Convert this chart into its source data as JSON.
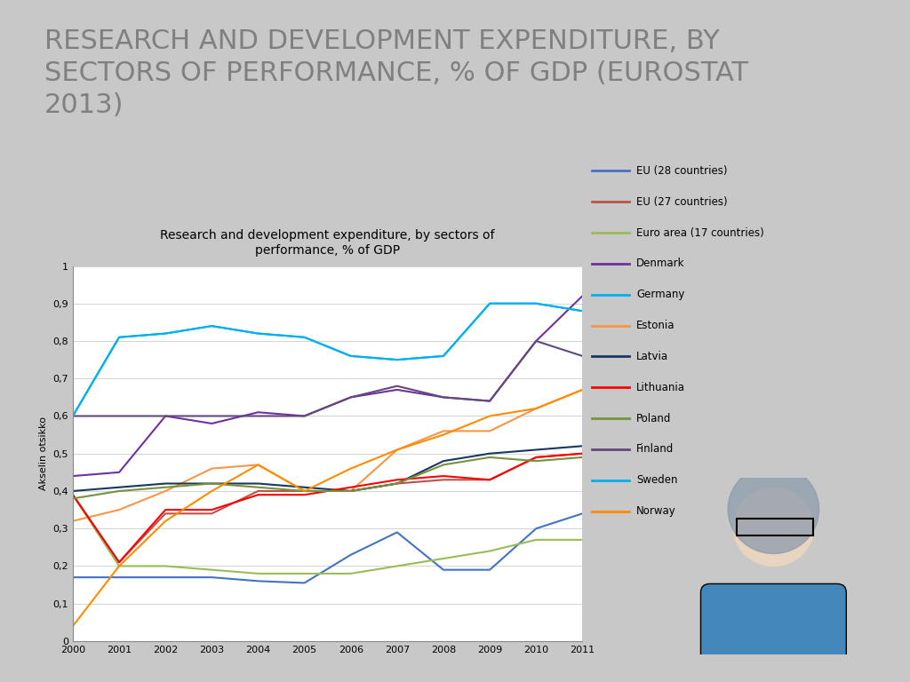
{
  "title_slide": "RESEARCH AND DEVELOPMENT EXPENDITURE, BY\nSECTORS OF PERFORMANCE, % OF GDP (EUROSTAT\n2013)",
  "chart_title": "Research and development expenditure, by sectors of\nperformance, % of GDP",
  "ylabel": "Akselin otsikko",
  "years": [
    2000,
    2001,
    2002,
    2003,
    2004,
    2005,
    2006,
    2007,
    2008,
    2009,
    2010,
    2011
  ],
  "series": [
    {
      "name": "EU (28 countries)",
      "color": "#4472C4",
      "values": [
        0.17,
        0.17,
        0.17,
        0.17,
        0.16,
        0.155,
        0.23,
        0.29,
        0.19,
        0.19,
        0.3,
        0.34
      ]
    },
    {
      "name": "EU (27 countries)",
      "color": "#C0504D",
      "values": [
        0.39,
        0.21,
        0.34,
        0.34,
        0.4,
        0.4,
        0.4,
        0.42,
        0.43,
        0.43,
        0.49,
        0.5
      ]
    },
    {
      "name": "Euro area (17 countries)",
      "color": "#9BBB59",
      "values": [
        0.39,
        0.2,
        0.2,
        0.19,
        0.18,
        0.18,
        0.18,
        0.2,
        0.22,
        0.24,
        0.27,
        0.27
      ]
    },
    {
      "name": "Denmark",
      "color": "#7030A0",
      "values": [
        0.44,
        0.45,
        0.6,
        0.58,
        0.61,
        0.6,
        0.65,
        0.67,
        0.65,
        0.64,
        0.8,
        0.92
      ]
    },
    {
      "name": "Germany",
      "color": "#00B0F0",
      "values": [
        0.6,
        0.81,
        0.82,
        0.84,
        0.82,
        0.81,
        0.76,
        0.75,
        0.76,
        0.9,
        0.9,
        0.88
      ]
    },
    {
      "name": "Estonia",
      "color": "#F79646",
      "values": [
        0.32,
        0.35,
        0.4,
        0.46,
        0.47,
        0.4,
        0.4,
        0.51,
        0.56,
        0.56,
        0.62,
        0.67
      ]
    },
    {
      "name": "Latvia",
      "color": "#17375E",
      "values": [
        0.4,
        0.41,
        0.42,
        0.42,
        0.42,
        0.41,
        0.4,
        0.42,
        0.48,
        0.5,
        0.51,
        0.52
      ]
    },
    {
      "name": "Lithuania",
      "color": "#FF0000",
      "values": [
        0.39,
        0.21,
        0.35,
        0.35,
        0.39,
        0.39,
        0.41,
        0.43,
        0.44,
        0.43,
        0.49,
        0.5
      ]
    },
    {
      "name": "Poland",
      "color": "#76923C",
      "values": [
        0.38,
        0.4,
        0.41,
        0.42,
        0.41,
        0.4,
        0.4,
        0.42,
        0.47,
        0.49,
        0.48,
        0.49
      ]
    },
    {
      "name": "Finland",
      "color": "#604A7B",
      "values": [
        0.6,
        0.6,
        0.6,
        0.6,
        0.6,
        0.6,
        0.65,
        0.68,
        0.65,
        0.64,
        0.8,
        0.76
      ]
    },
    {
      "name": "Sweden",
      "color": "#00B0F0",
      "values": [
        0.6,
        0.81,
        0.82,
        0.84,
        0.82,
        0.81,
        0.76,
        0.75,
        0.76,
        0.9,
        0.9,
        0.88
      ]
    },
    {
      "name": "Norway",
      "color": "#FF8C00",
      "values": [
        0.04,
        0.2,
        0.32,
        0.4,
        0.47,
        0.4,
        0.46,
        0.51,
        0.55,
        0.6,
        0.62,
        0.67
      ]
    }
  ],
  "ylim": [
    0,
    1.0
  ],
  "yticks": [
    0,
    0.1,
    0.2,
    0.3,
    0.4,
    0.5,
    0.6,
    0.7,
    0.8,
    0.9,
    1
  ],
  "ytick_labels": [
    "0",
    "0,1",
    "0,2",
    "0,3",
    "0,4",
    "0,5",
    "0,6",
    "0,7",
    "0,8",
    "0,9",
    "1"
  ],
  "slide_bg": "#C8C8C8",
  "title_bg": "#FFFFFF",
  "chart_bg": "#FFFFFF",
  "title_color": "#808080",
  "title_fontsize": 22,
  "chart_title_fontsize": 10,
  "axis_label_fontsize": 8,
  "tick_fontsize": 8,
  "legend_fontsize": 8.5,
  "photo_color": "#C8413B"
}
